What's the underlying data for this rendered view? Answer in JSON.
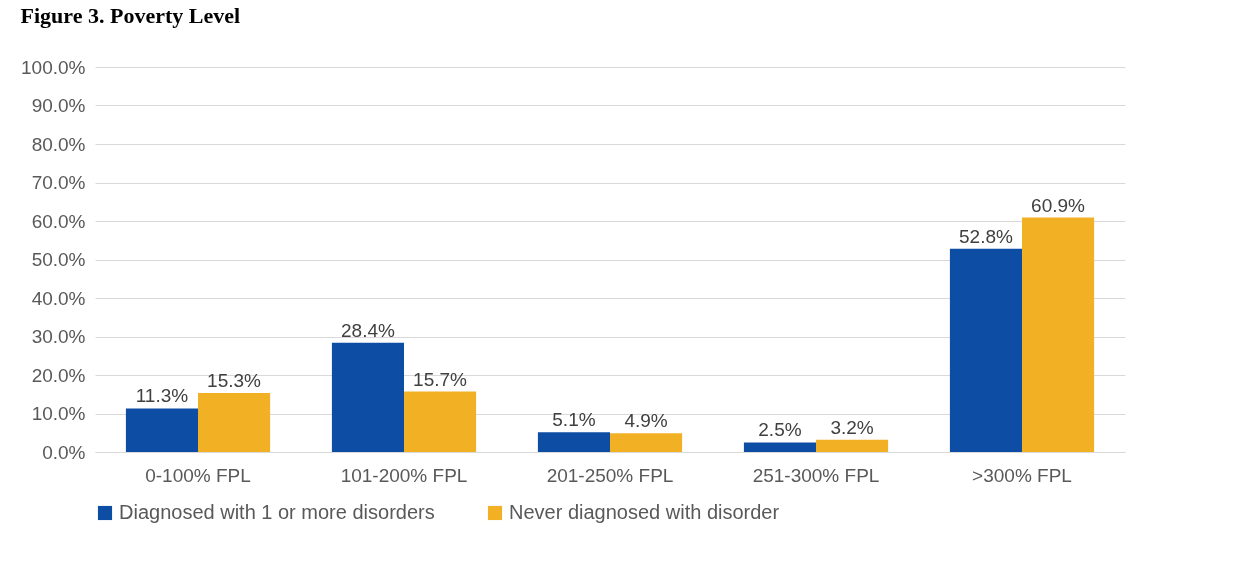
{
  "chart_data": {
    "type": "bar",
    "title": "Figure 3. Poverty Level",
    "categories": [
      "0-100% FPL",
      "101-200% FPL",
      "201-250% FPL",
      "251-300% FPL",
      ">300% FPL"
    ],
    "series": [
      {
        "name": "Diagnosed with 1 or more disorders",
        "color": "#0e4da4",
        "values": [
          11.3,
          28.4,
          5.1,
          2.5,
          52.8
        ],
        "value_labels": [
          "11.3%",
          "28.4%",
          "5.1%",
          "2.5%",
          "52.8%"
        ]
      },
      {
        "name": "Never diagnosed with disorder",
        "color": "#f2b024",
        "values": [
          15.3,
          15.7,
          4.9,
          3.2,
          60.9
        ],
        "value_labels": [
          "15.3%",
          "15.7%",
          "4.9%",
          "3.2%",
          "60.9%"
        ]
      }
    ],
    "ylim": [
      0,
      100
    ],
    "yticks": [
      {
        "value": 0,
        "label": "0.0%"
      },
      {
        "value": 10,
        "label": "10.0%"
      },
      {
        "value": 20,
        "label": "20.0%"
      },
      {
        "value": 30,
        "label": "30.0%"
      },
      {
        "value": 40,
        "label": "40.0%"
      },
      {
        "value": 50,
        "label": "50.0%"
      },
      {
        "value": 60,
        "label": "60.0%"
      },
      {
        "value": 70,
        "label": "70.0%"
      },
      {
        "value": 80,
        "label": "80.0%"
      },
      {
        "value": 90,
        "label": "90.0%"
      },
      {
        "value": 100,
        "label": "100.0%"
      }
    ],
    "grid": "y",
    "legend": "bottom"
  }
}
